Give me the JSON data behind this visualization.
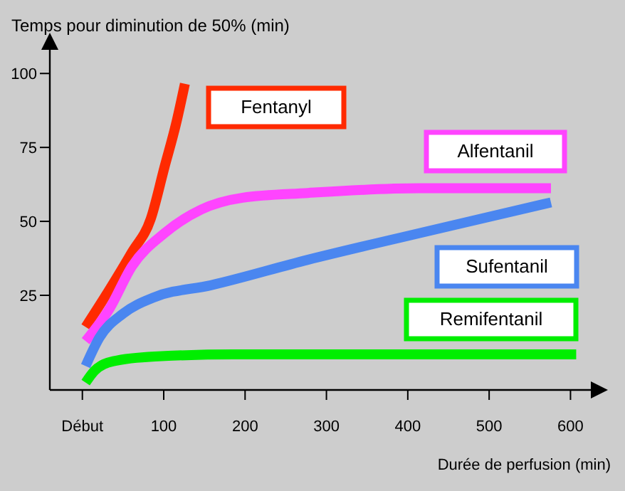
{
  "chart_data": {
    "type": "line",
    "title": "Temps pour diminution de 50% (min)",
    "xlabel": "Durée de perfusion (min)",
    "xlim": [
      -40,
      625
    ],
    "ylim": [
      -7,
      108
    ],
    "xticks": [
      {
        "value": 0,
        "label": "Début"
      },
      100,
      200,
      300,
      400,
      500,
      600
    ],
    "yticks": [
      25,
      50,
      75,
      100
    ],
    "grid": false,
    "marker": "none",
    "line_style": "solid",
    "series": [
      {
        "name": "Fentanyl",
        "color": "#ff2a00",
        "x": [
          4,
          33,
          61,
          84,
          101,
          115,
          126
        ],
        "values": [
          14.3,
          26.8,
          39.6,
          50.8,
          68.4,
          82.8,
          96.5
        ]
      },
      {
        "name": "Alfentanil",
        "color": "#ff44ff",
        "x": [
          4,
          33,
          61,
          101,
          146,
          197,
          277,
          414,
          576
        ],
        "values": [
          9.5,
          20.3,
          34.8,
          46,
          54,
          58,
          59.6,
          61.2,
          61.2
        ]
      },
      {
        "name": "Sufentanil",
        "color": "#4a86f0",
        "x": [
          4,
          21,
          50,
          89,
          158,
          277,
          414,
          576
        ],
        "values": [
          1.1,
          10.7,
          18.8,
          24.4,
          28.4,
          37,
          46,
          56.4
        ]
      },
      {
        "name": "Remifentanil",
        "color": "#00ee00",
        "x": [
          4,
          15,
          38,
          89,
          186,
          414,
          607
        ],
        "values": [
          -4.5,
          -0.5,
          2.7,
          4.3,
          5,
          5,
          5
        ]
      }
    ]
  }
}
